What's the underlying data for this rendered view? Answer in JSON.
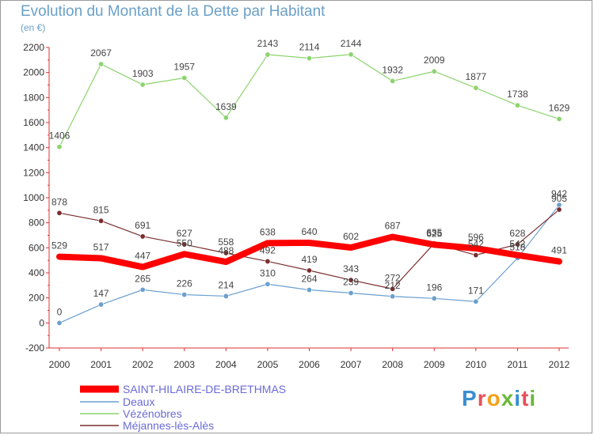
{
  "header": {
    "title": "Evolution du Montant de la Dette par Habitant",
    "subtitle": "(en €)"
  },
  "brand": {
    "name": "Proxiti",
    "letter_colors": [
      "#3a8fd0",
      "#e8505b",
      "#f2a01c",
      "#6cb83a",
      "#3a8fd0",
      "#e8505b",
      "#6cb83a"
    ]
  },
  "chart_data": {
    "type": "line",
    "title": "Evolution du Montant de la Dette par Habitant",
    "ylabel": "(en €)",
    "x": [
      2000,
      2001,
      2002,
      2003,
      2004,
      2005,
      2006,
      2007,
      2008,
      2009,
      2010,
      2011,
      2012
    ],
    "ylim": [
      -200,
      2200
    ],
    "yticks": [
      -200,
      0,
      200,
      400,
      600,
      800,
      1000,
      1200,
      1400,
      1600,
      1800,
      2000,
      2200
    ],
    "grid": false,
    "legend": "bottom-left",
    "series": [
      {
        "name": "SAINT-HILAIRE-DE-BRETHMAS",
        "color": "#ff0000",
        "values": [
          529,
          517,
          447,
          550,
          488,
          638,
          640,
          602,
          687,
          625,
          596,
          542,
          491
        ]
      },
      {
        "name": "Deaux",
        "color": "#6a9fd0",
        "values": [
          0,
          147,
          265,
          226,
          214,
          310,
          264,
          239,
          212,
          196,
          171,
          518,
          942
        ]
      },
      {
        "name": "Vézénobres",
        "color": "#8cd46e",
        "values": [
          1406,
          2067,
          1903,
          1957,
          1639,
          2143,
          2114,
          2144,
          1932,
          2009,
          1877,
          1738,
          1629
        ]
      },
      {
        "name": "Méjannes-lès-Alès",
        "color": "#7a2e2e",
        "values": [
          878,
          815,
          691,
          627,
          558,
          492,
          419,
          343,
          272,
          635,
          542,
          628,
          905
        ]
      }
    ]
  }
}
